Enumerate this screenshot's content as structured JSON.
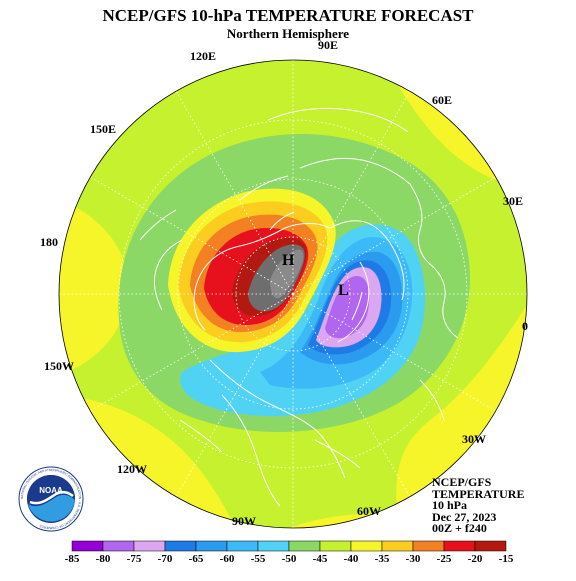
{
  "header": {
    "title": "NCEP/GFS 10-hPa TEMPERATURE FORECAST",
    "subtitle": "Northern Hemisphere"
  },
  "longitudes": {
    "e90": "90E",
    "e120": "120E",
    "e60": "60E",
    "e150": "150E",
    "e30": "30E",
    "d180": "180",
    "d0": "0",
    "w150": "150W",
    "w30": "30W",
    "w120": "120W",
    "w60": "60W",
    "w90": "90W"
  },
  "map_labels": {
    "high": "H",
    "low": "L"
  },
  "info": {
    "line1": "NCEP/GFS",
    "line2": "TEMPERATURE",
    "line3": "10 hPa",
    "line4": "Dec 27, 2023",
    "line5": "00Z + f240"
  },
  "logo": {
    "name": "NOAA",
    "ring_text": "NATIONAL OCEANIC AND ATMOSPHERIC ADMINISTRATION · U.S. DEPARTMENT OF COMMERCE"
  },
  "colorbar": {
    "ticks": [
      "-85",
      "-80",
      "-75",
      "-70",
      "-65",
      "-60",
      "-55",
      "-50",
      "-45",
      "-40",
      "-35",
      "-30",
      "-25",
      "-20",
      "-15"
    ],
    "colors": [
      "#9400d3",
      "#b066ee",
      "#dca6f0",
      "#1e7be6",
      "#2b9bf0",
      "#3cb9f7",
      "#50d2f4",
      "#8cd867",
      "#c6f12e",
      "#f5f52a",
      "#fbcd1f",
      "#f38121",
      "#e6111c",
      "#b41911"
    ]
  },
  "theme": {
    "ocean": "#ffffff",
    "border": "#ffffff"
  }
}
